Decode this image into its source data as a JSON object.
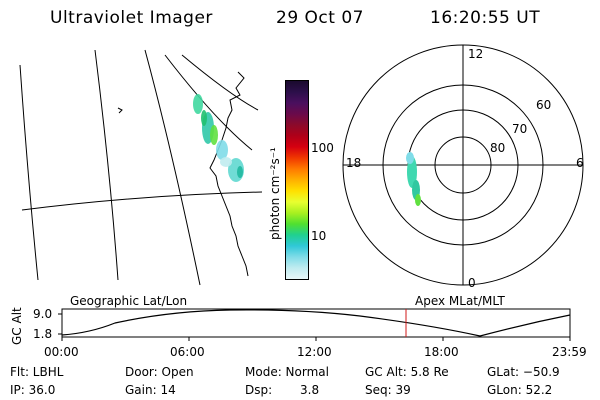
{
  "header": {
    "instrument": "Ultraviolet Imager",
    "date": "29 Oct 07",
    "time": "16:20:55 UT"
  },
  "map_panel": {
    "label": "Geographic Lat/Lon"
  },
  "polar_panel": {
    "label": "Apex MLat/MLT",
    "mlt_labels": [
      "12",
      "18",
      "6",
      "0"
    ],
    "mlat_labels": [
      "60",
      "70",
      "80"
    ]
  },
  "colorbar": {
    "unit_label": "photon cm⁻²s⁻¹",
    "ticks": [
      "100",
      "10"
    ],
    "colors": [
      "#1a0a2e",
      "#2c0f4a",
      "#4a0f5e",
      "#6a0a4a",
      "#8c0a2a",
      "#b00018",
      "#d60010",
      "#f03800",
      "#ff7a00",
      "#ffb000",
      "#ffe000",
      "#e8ff30",
      "#a8f020",
      "#50e030",
      "#20d090",
      "#30c8d8",
      "#80dce8",
      "#c0ecf0",
      "#e8f6f8"
    ]
  },
  "altitude_plot": {
    "ylabel": "GC Alt",
    "y_ticks": [
      "9.0",
      "1.8"
    ],
    "x_ticks": [
      "00:00",
      "06:00",
      "12:00",
      "18:00",
      "23:59"
    ],
    "current_time_marker_color": "#d01818"
  },
  "status": {
    "filter": "Flt: LBHL",
    "ip": "IP: 36.0",
    "door": "Door: Open",
    "gain": "Gain: 14",
    "mode": "Mode: Normal",
    "dsp_label": "Dsp:",
    "dsp_value": "3.8",
    "gc_alt": "GC Alt: 5.8 Re",
    "seq": "Seq: 39",
    "glat": "GLat: −50.9",
    "glon": "GLon: 52.2"
  }
}
